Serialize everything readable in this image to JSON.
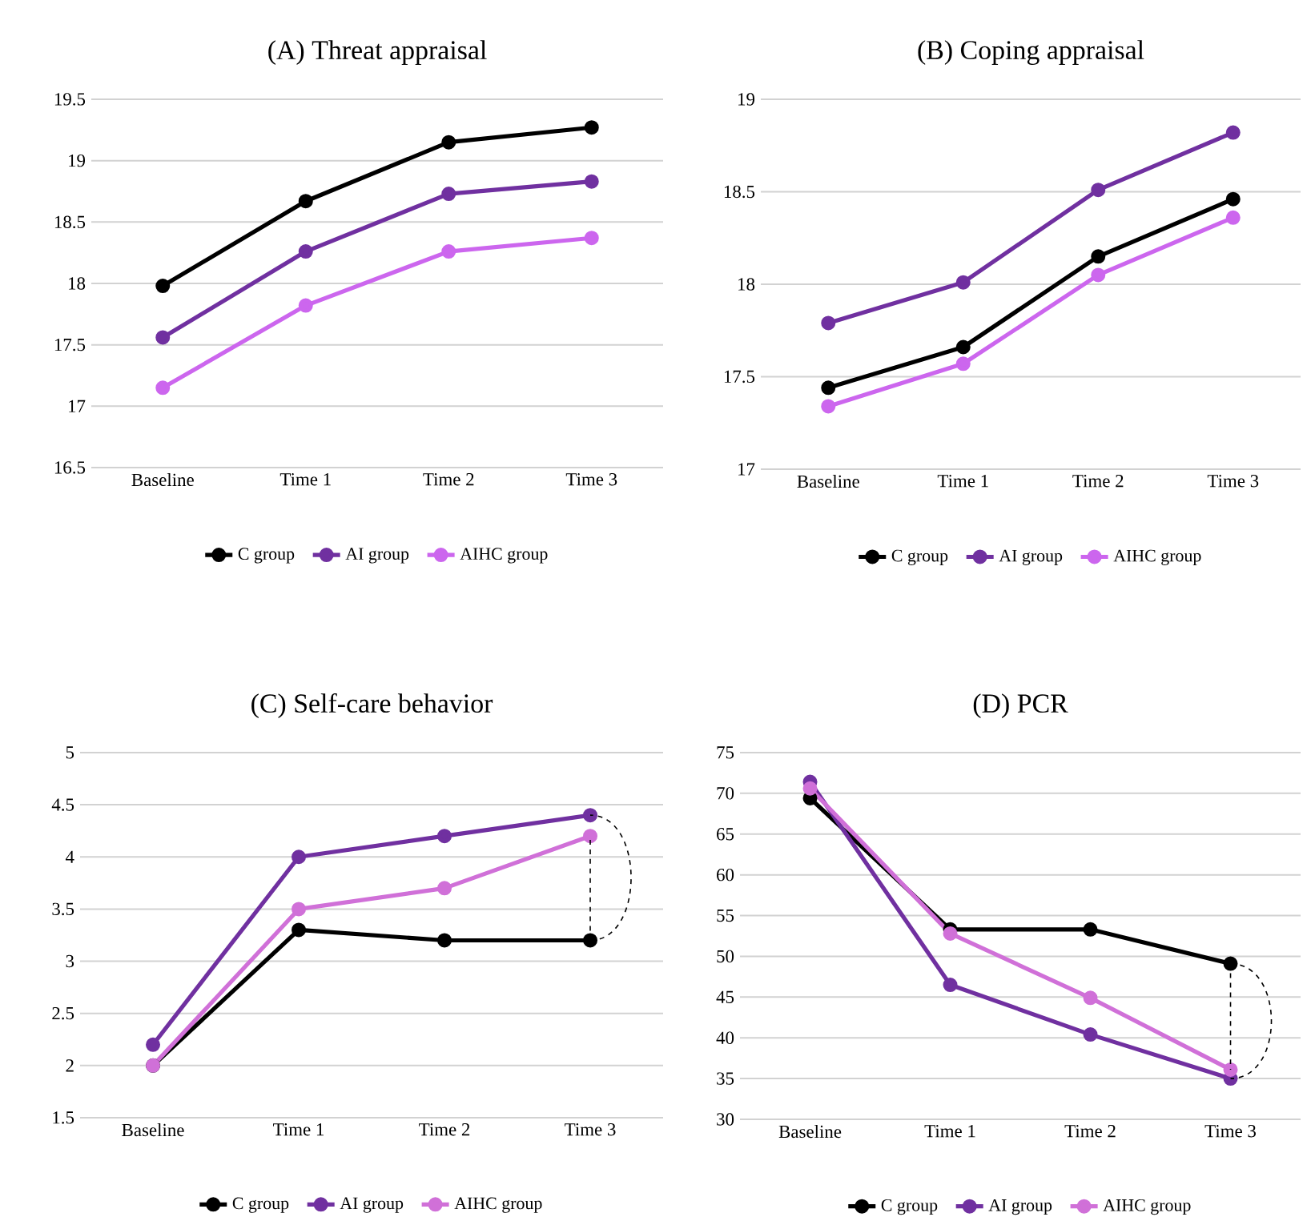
{
  "chart_data": [
    {
      "type": "line",
      "title": "(A) Threat appraisal",
      "categories": [
        "Baseline",
        "Time 1",
        "Time 2",
        "Time 3"
      ],
      "series": [
        {
          "name": "C group",
          "color": "#000000",
          "values": [
            17.98,
            18.67,
            19.15,
            19.27
          ]
        },
        {
          "name": "AI group",
          "color": "#7030a0",
          "values": [
            17.56,
            18.26,
            18.73,
            18.83
          ]
        },
        {
          "name": "AIHC group",
          "color": "#cc66ee",
          "values": [
            17.15,
            17.82,
            18.26,
            18.37
          ]
        }
      ],
      "ylim": [
        16.5,
        19.5
      ],
      "yticks": [
        16.5,
        17,
        17.5,
        18,
        18.5,
        19,
        19.5
      ],
      "grid": "y",
      "legend": "bottom",
      "marker": "circle"
    },
    {
      "type": "line",
      "title": "(B) Coping appraisal",
      "categories": [
        "Baseline",
        "Time 1",
        "Time 2",
        "Time 3"
      ],
      "series": [
        {
          "name": "C group",
          "color": "#000000",
          "values": [
            17.44,
            17.66,
            18.15,
            18.46
          ]
        },
        {
          "name": "AI group",
          "color": "#7030a0",
          "values": [
            17.79,
            18.01,
            18.51,
            18.82
          ]
        },
        {
          "name": "AIHC group",
          "color": "#cc66ee",
          "values": [
            17.34,
            17.57,
            18.05,
            18.36
          ]
        }
      ],
      "ylim": [
        17,
        19
      ],
      "yticks": [
        17,
        17.5,
        18,
        18.5,
        19
      ],
      "grid": "y",
      "legend": "bottom",
      "marker": "circle"
    },
    {
      "type": "line",
      "title": "(C) Self-care behavior",
      "categories": [
        "Baseline",
        "Time 1",
        "Time 2",
        "Time 3"
      ],
      "series": [
        {
          "name": "C group",
          "color": "#000000",
          "values": [
            2,
            3.3,
            3.2,
            3.2
          ]
        },
        {
          "name": "AI group",
          "color": "#7030a0",
          "values": [
            2.2,
            4,
            4.2,
            4.4
          ]
        },
        {
          "name": "AIHC group",
          "color": "#d070d8",
          "values": [
            2,
            3.5,
            3.7,
            4.2
          ]
        }
      ],
      "ylim": [
        1.5,
        5
      ],
      "yticks": [
        1.5,
        2,
        2.5,
        3,
        3.5,
        4,
        4.5,
        5
      ],
      "grid": "y",
      "legend": "bottom",
      "marker": "circle"
    },
    {
      "type": "line",
      "title": "(D) PCR",
      "categories": [
        "Baseline",
        "Time 1",
        "Time 2",
        "Time 3"
      ],
      "series": [
        {
          "name": "C group",
          "color": "#000000",
          "values": [
            69.4,
            53.3,
            53.3,
            49.1
          ]
        },
        {
          "name": "AI group",
          "color": "#7030a0",
          "values": [
            71.4,
            46.5,
            40.4,
            35.0
          ]
        },
        {
          "name": "AIHC group",
          "color": "#d070d8",
          "values": [
            70.6,
            52.8,
            44.9,
            36.1
          ]
        }
      ],
      "ylim": [
        30,
        75
      ],
      "yticks": [
        30,
        35,
        40,
        45,
        50,
        55,
        60,
        65,
        70,
        75
      ],
      "grid": "y",
      "legend": "bottom",
      "marker": "circle"
    }
  ]
}
